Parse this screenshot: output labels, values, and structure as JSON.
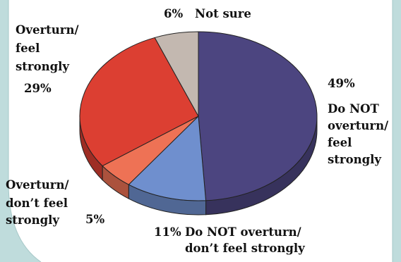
{
  "chart_data": {
    "type": "pie",
    "title": "",
    "three_d": true,
    "slices": [
      {
        "key": "do_not_overturn_strongly",
        "value": 49,
        "pct_label": "49%",
        "label_lines": [
          "Do NOT",
          "overturn/",
          "feel",
          "strongly"
        ],
        "color": "#4c4580"
      },
      {
        "key": "do_not_overturn_not_strongly",
        "value": 11,
        "pct_label": "11%",
        "label_lines": [
          "Do NOT overturn/",
          "don’t feel strongly"
        ],
        "color": "#6f8fce"
      },
      {
        "key": "overturn_not_strongly",
        "value": 5,
        "pct_label": "5%",
        "label_lines": [
          "Overturn/",
          "don’t feel",
          "strongly"
        ],
        "color": "#ee7255"
      },
      {
        "key": "overturn_strongly",
        "value": 29,
        "pct_label": "29%",
        "label_lines": [
          "Overturn/",
          "feel",
          "strongly"
        ],
        "color": "#dc3f32"
      },
      {
        "key": "not_sure",
        "value": 6,
        "pct_label": "6%",
        "label_lines": [
          "Not sure"
        ],
        "color": "#c3b8b0"
      }
    ]
  },
  "colors": {
    "frame": "#bfdcdc",
    "frame_edge": "#a6c8c8"
  }
}
